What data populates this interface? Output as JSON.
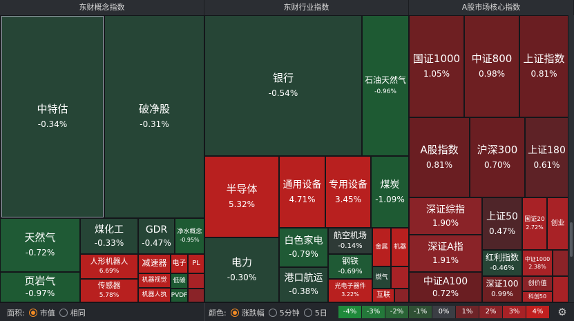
{
  "headers": {
    "concept": "东财概念指数",
    "industry": "东财行业指数",
    "core": "A股市场核心指数"
  },
  "concept": {
    "zhongteguo": {
      "name": "中特估",
      "pct": "-0.34%"
    },
    "pojinggu": {
      "name": "破净股",
      "pct": "-0.31%"
    },
    "tianranqi": {
      "name": "天然气",
      "pct": "-0.72%"
    },
    "meihuagong": {
      "name": "煤化工",
      "pct": "-0.33%"
    },
    "gdr": {
      "name": "GDR",
      "pct": "-0.47%"
    },
    "jingshui": {
      "name": "净水概念",
      "pct": "-0.95%"
    },
    "renxing": {
      "name": "人形机器人",
      "pct": "6.69%"
    },
    "jiansuqi": {
      "name": "减速器",
      "pct": ""
    },
    "dianzi": {
      "name": "电子",
      "pct": ""
    },
    "pl": {
      "name": "PL",
      "pct": ""
    },
    "yeyanqi": {
      "name": "页岩气",
      "pct": "-0.97%"
    },
    "chuanganqi": {
      "name": "传感器",
      "pct": "5.78%"
    },
    "jiqishijue": {
      "name": "机器视觉",
      "pct": ""
    },
    "ditan": {
      "name": "低碳",
      "pct": ""
    },
    "jiqirenzhi": {
      "name": "机器人执",
      "pct": ""
    },
    "pvdf": {
      "name": "PVDF",
      "pct": ""
    }
  },
  "industry": {
    "yinhang": {
      "name": "银行",
      "pct": "-0.54%"
    },
    "shiyou": {
      "name": "石油天然气",
      "pct": "-0.96%"
    },
    "bandaoti": {
      "name": "半导体",
      "pct": "5.32%"
    },
    "tongyong": {
      "name": "通用设备",
      "pct": "4.71%"
    },
    "zhuanyong": {
      "name": "专用设备",
      "pct": "3.45%"
    },
    "meitan": {
      "name": "煤炭",
      "pct": "-1.09%"
    },
    "dianli": {
      "name": "电力",
      "pct": "-0.30%"
    },
    "baise": {
      "name": "白色家电",
      "pct": "-0.79%"
    },
    "hangkong": {
      "name": "航空机场",
      "pct": "-0.14%"
    },
    "jinshu": {
      "name": "金属",
      "pct": ""
    },
    "jiqi": {
      "name": "机器",
      "pct": ""
    },
    "gangtie": {
      "name": "钢铁",
      "pct": "-0.69%"
    },
    "gangkou": {
      "name": "港口航运",
      "pct": "-0.38%"
    },
    "guangdian": {
      "name": "光电子器件",
      "pct": "3.22%"
    },
    "ranqi": {
      "name": "燃气",
      "pct": ""
    },
    "hulian": {
      "name": "互联",
      "pct": ""
    }
  },
  "core": {
    "gz1000": {
      "name": "国证1000",
      "pct": "1.05%"
    },
    "zz800": {
      "name": "中证800",
      "pct": "0.98%"
    },
    "szzs": {
      "name": "上证指数",
      "pct": "0.81%"
    },
    "agzs": {
      "name": "A股指数",
      "pct": "0.81%"
    },
    "hs300": {
      "name": "沪深300",
      "pct": "0.70%"
    },
    "sz180": {
      "name": "上证180",
      "pct": "0.61%"
    },
    "szzz": {
      "name": "深证综指",
      "pct": "1.90%"
    },
    "sz50": {
      "name": "上证50",
      "pct": "0.47%"
    },
    "gz20": {
      "name": "国证20",
      "pct": "2.72%"
    },
    "chuangye": {
      "name": "创业",
      "pct": ""
    },
    "szaz": {
      "name": "深证A指",
      "pct": "1.91%"
    },
    "hongli": {
      "name": "红利指数",
      "pct": "-0.46%"
    },
    "zz1000": {
      "name": "中证1000",
      "pct": "2.38%"
    },
    "zza100": {
      "name": "中证A100",
      "pct": "0.72%"
    },
    "sz100": {
      "name": "深证100",
      "pct": "0.99%"
    },
    "chuangxin": {
      "name": "创价值",
      "pct": ""
    },
    "kechuang": {
      "name": "科创50",
      "pct": ""
    }
  },
  "footer": {
    "area_label": "面积:",
    "area_options": [
      "市值",
      "相同"
    ],
    "color_label": "颜色:",
    "color_options": [
      "涨跌幅",
      "5分钟",
      "5日"
    ],
    "scale": [
      "-4%",
      "-3%",
      "-2%",
      "-1%",
      "0%",
      "1%",
      "2%",
      "3%",
      "4%"
    ],
    "scale_colors": [
      "#1f8a3b",
      "#24783a",
      "#2a6436",
      "#2f5034",
      "#3b3e44",
      "#6e2428",
      "#8a2328",
      "#a82226",
      "#c0201f"
    ],
    "settings_icon": "gear-icon"
  },
  "colors": {
    "green_dark": "#264536",
    "green_mid": "#1e5a33",
    "red_bright": "#b8201f",
    "red_dark": "#6a1e22",
    "neutral": "#2e3a36"
  }
}
